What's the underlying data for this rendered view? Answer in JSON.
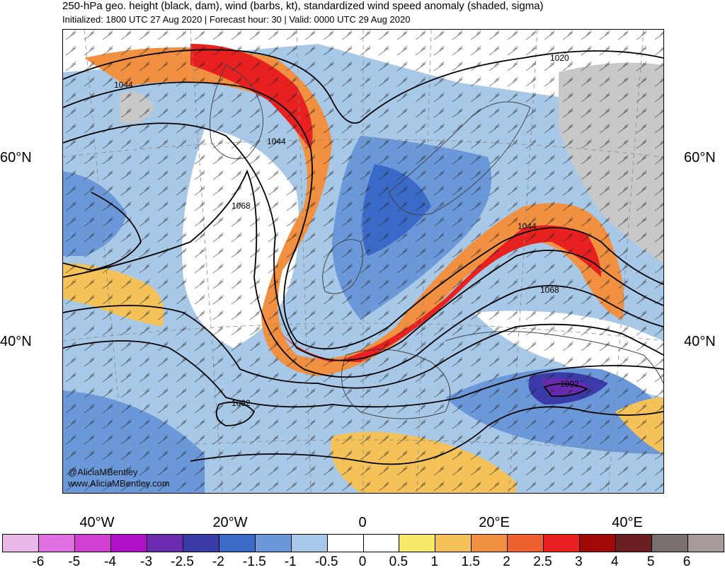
{
  "header": {
    "title": "250-hPa geo. height (black, dam), wind (barbs, kt), standardized wind speed anomaly (shaded, sigma)",
    "subtitle": "Initialized: 1800 UTC 27 Aug 2020 | Forecast hour: 30 | Valid: 0000 UTC 29 Aug 2020"
  },
  "map": {
    "lat_labels": [
      {
        "id": "60n-left",
        "text": "60°N"
      },
      {
        "id": "60n-right",
        "text": "60°N"
      },
      {
        "id": "40n-left",
        "text": "40°N"
      },
      {
        "id": "40n-right",
        "text": "40°N"
      }
    ],
    "lon_labels": [
      "40°W",
      "20°W",
      "0",
      "20°E",
      "40°E"
    ],
    "contour_labels": [
      "1044",
      "1044",
      "1068",
      "1044",
      "1068",
      "1020",
      "1092",
      "1092"
    ],
    "credit": [
      "@AliciaMBentley",
      "www.AliciaMBentley.com"
    ]
  },
  "colorbar": {
    "colors": [
      "#e8b8e8",
      "#e070e0",
      "#d040d0",
      "#b010c8",
      "#6a2ab0",
      "#3a3aa8",
      "#3a6ac8",
      "#6a98d8",
      "#a8c8e8",
      "#ffffff",
      "#ffffff",
      "#f8e868",
      "#f4c258",
      "#f09040",
      "#ee6030",
      "#e82020",
      "#a00808",
      "#6a2020",
      "#7a7070",
      "#a89a9a"
    ],
    "labels": [
      "-6",
      "-5",
      "-4",
      "-3",
      "-2.5",
      "-2",
      "-1.5",
      "-1",
      "-0.5",
      "0",
      "0.5",
      "1",
      "1.5",
      "2",
      "2.5",
      "3",
      "4",
      "5",
      "6"
    ]
  }
}
